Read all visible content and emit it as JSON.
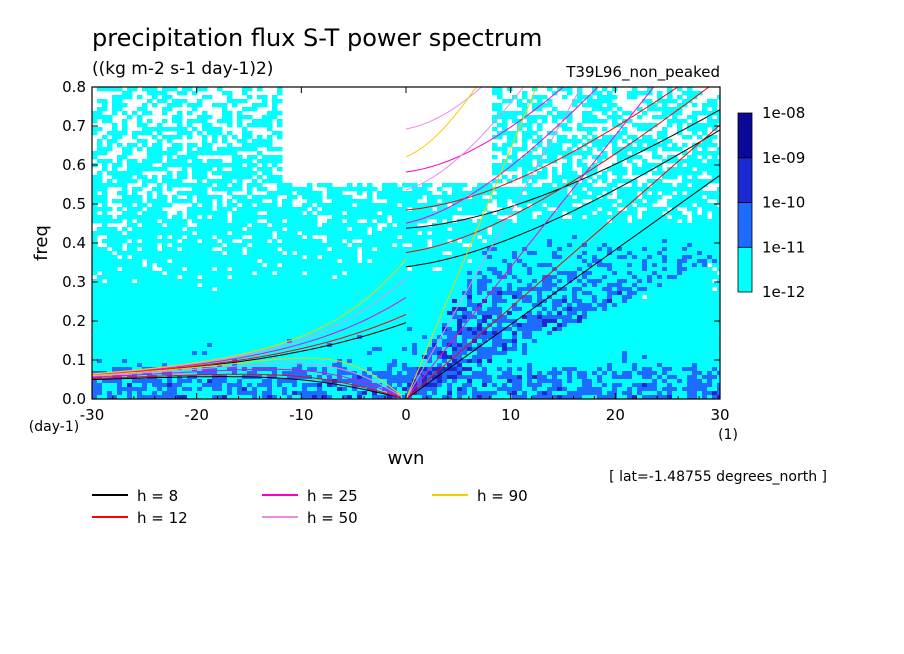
{
  "chart_data": {
    "type": "heatmap",
    "title": "precipitation flux S-T power spectrum",
    "units": "((kg m-2 s-1 day-1)2)",
    "run_label": "T39L96_non_peaked",
    "xlabel": "wvn",
    "xunit": "(1)",
    "ylabel": "freq",
    "yunit": "(day-1)",
    "xlim": [
      -30,
      30
    ],
    "ylim": [
      0,
      0.8
    ],
    "x_ticks": [
      -30,
      -20,
      -10,
      0,
      10,
      20,
      30
    ],
    "x_tick_labels": [
      "-30",
      "-20",
      "-10",
      "0",
      "10",
      "20",
      "30"
    ],
    "y_ticks": [
      0,
      0.1,
      0.2,
      0.3,
      0.4,
      0.5,
      0.6,
      0.7,
      0.8
    ],
    "y_tick_labels": [
      "0.0",
      "0.1",
      "0.2",
      "0.3",
      "0.4",
      "0.5",
      "0.6",
      "0.7",
      "0.8"
    ],
    "footnote": "[ lat=-1.48755 degrees_north ]",
    "colorbar": {
      "levels": [
        "1e-12",
        "1e-11",
        "1e-10",
        "1e-09",
        "1e-08"
      ],
      "colors": [
        "#00ffff",
        "#1e6cff",
        "#1a2ad0",
        "#0a0a9a",
        "#4a1aa8"
      ]
    },
    "background_color": "#ffffff",
    "dispersion_curves": [
      {
        "label": "h =  8",
        "h": 8,
        "color": "#000000"
      },
      {
        "label": "h = 12",
        "h": 12,
        "color": "#ff0000"
      },
      {
        "label": "h = 25",
        "h": 25,
        "color": "#ff00c8"
      },
      {
        "label": "h = 50",
        "h": 50,
        "color": "#e88ce8"
      },
      {
        "label": "h = 90",
        "h": 90,
        "color": "#f0d000"
      }
    ]
  }
}
